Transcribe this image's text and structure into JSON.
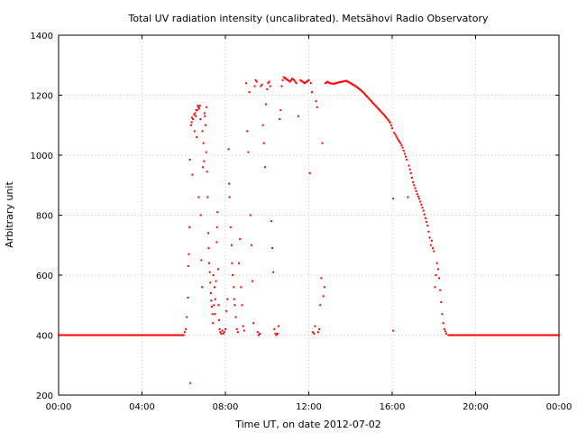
{
  "chart_data": {
    "type": "scatter",
    "title": "Total UV radiation intensity (uncalibrated). Metsähovi Radio Observatory",
    "xlabel": "Time UT, on date 2012-07-02",
    "ylabel": "Arbitrary unit",
    "x_unit": "hours UT",
    "xlim": [
      0,
      24
    ],
    "ylim": [
      200,
      1400
    ],
    "x_ticks": [
      0,
      4,
      8,
      12,
      16,
      20,
      24
    ],
    "x_tick_labels": [
      "00:00",
      "04:00",
      "08:00",
      "12:00",
      "16:00",
      "20:00",
      "00:00"
    ],
    "y_ticks": [
      200,
      400,
      600,
      800,
      1000,
      1200,
      1400
    ],
    "y_tick_labels": [
      "200",
      "400",
      "600",
      "800",
      "1000",
      "1200",
      "1400"
    ],
    "grid": true,
    "grid_style": "dotted",
    "point_color": "#ff0000",
    "series": [
      {
        "points": [
          [
            0.0,
            400
          ],
          [
            0.5,
            400
          ],
          [
            1.0,
            400
          ],
          [
            1.5,
            400
          ],
          [
            2.0,
            400
          ],
          [
            2.5,
            400
          ],
          [
            3.0,
            400
          ],
          [
            3.5,
            400
          ],
          [
            4.0,
            400
          ],
          [
            4.5,
            400
          ],
          [
            5.0,
            400
          ],
          [
            5.5,
            400
          ],
          [
            6.0,
            400
          ],
          [
            6.05,
            410
          ],
          [
            6.1,
            420
          ],
          [
            6.15,
            460
          ],
          [
            6.2,
            525
          ],
          [
            6.22,
            630
          ],
          [
            6.25,
            670
          ],
          [
            6.28,
            760
          ],
          [
            6.3,
            985
          ],
          [
            6.32,
            240
          ],
          [
            6.35,
            1100
          ],
          [
            6.38,
            1110
          ],
          [
            6.4,
            1125
          ],
          [
            6.42,
            935
          ],
          [
            6.45,
            1120
          ],
          [
            6.5,
            1135
          ],
          [
            6.52,
            1080
          ],
          [
            6.55,
            1140
          ],
          [
            6.58,
            1130
          ],
          [
            6.6,
            1150
          ],
          [
            6.62,
            1060
          ],
          [
            6.65,
            1150
          ],
          [
            6.68,
            1165
          ],
          [
            6.7,
            1160
          ],
          [
            6.72,
            860
          ],
          [
            6.75,
            1155
          ],
          [
            6.78,
            1165
          ],
          [
            6.8,
            1120
          ],
          [
            6.82,
            800
          ],
          [
            6.85,
            650
          ],
          [
            6.88,
            560
          ],
          [
            6.9,
            1080
          ],
          [
            6.92,
            960
          ],
          [
            6.95,
            1040
          ],
          [
            6.98,
            980
          ],
          [
            7.0,
            1140
          ],
          [
            7.02,
            1130
          ],
          [
            7.05,
            1100
          ],
          [
            7.08,
            1010
          ],
          [
            7.1,
            1160
          ],
          [
            7.12,
            945
          ],
          [
            7.15,
            860
          ],
          [
            7.18,
            740
          ],
          [
            7.2,
            690
          ],
          [
            7.22,
            640
          ],
          [
            7.25,
            610
          ],
          [
            7.28,
            575
          ],
          [
            7.3,
            540
          ],
          [
            7.32,
            515
          ],
          [
            7.35,
            495
          ],
          [
            7.38,
            470
          ],
          [
            7.4,
            440
          ],
          [
            7.42,
            600
          ],
          [
            7.45,
            500
          ],
          [
            7.48,
            560
          ],
          [
            7.5,
            470
          ],
          [
            7.52,
            520
          ],
          [
            7.55,
            580
          ],
          [
            7.58,
            710
          ],
          [
            7.6,
            760
          ],
          [
            7.62,
            810
          ],
          [
            7.65,
            620
          ],
          [
            7.68,
            500
          ],
          [
            7.7,
            450
          ],
          [
            7.72,
            420
          ],
          [
            7.75,
            410
          ],
          [
            7.8,
            405
          ],
          [
            7.85,
            415
          ],
          [
            7.9,
            405
          ],
          [
            7.95,
            410
          ],
          [
            8.0,
            420
          ],
          [
            8.05,
            480
          ],
          [
            8.1,
            520
          ],
          [
            8.15,
            1020
          ],
          [
            8.18,
            905
          ],
          [
            8.2,
            860
          ],
          [
            8.25,
            760
          ],
          [
            8.3,
            700
          ],
          [
            8.32,
            640
          ],
          [
            8.35,
            600
          ],
          [
            8.4,
            560
          ],
          [
            8.42,
            520
          ],
          [
            8.45,
            500
          ],
          [
            8.5,
            460
          ],
          [
            8.55,
            420
          ],
          [
            8.6,
            410
          ],
          [
            8.65,
            640
          ],
          [
            8.7,
            720
          ],
          [
            8.75,
            560
          ],
          [
            8.8,
            500
          ],
          [
            8.85,
            430
          ],
          [
            8.9,
            415
          ],
          [
            9.0,
            1240
          ],
          [
            9.05,
            1080
          ],
          [
            9.1,
            1010
          ],
          [
            9.15,
            1210
          ],
          [
            9.2,
            800
          ],
          [
            9.25,
            700
          ],
          [
            9.3,
            580
          ],
          [
            9.35,
            440
          ],
          [
            9.4,
            1230
          ],
          [
            9.45,
            1250
          ],
          [
            9.5,
            1245
          ],
          [
            9.55,
            410
          ],
          [
            9.6,
            400
          ],
          [
            9.65,
            405
          ],
          [
            9.7,
            1230
          ],
          [
            9.75,
            1235
          ],
          [
            9.8,
            1100
          ],
          [
            9.85,
            1040
          ],
          [
            9.9,
            960
          ],
          [
            9.95,
            1170
          ],
          [
            10.0,
            1220
          ],
          [
            10.05,
            1240
          ],
          [
            10.1,
            1245
          ],
          [
            10.15,
            1230
          ],
          [
            10.2,
            780
          ],
          [
            10.25,
            690
          ],
          [
            10.3,
            610
          ],
          [
            10.35,
            420
          ],
          [
            10.4,
            405
          ],
          [
            10.45,
            400
          ],
          [
            10.5,
            405
          ],
          [
            10.55,
            430
          ],
          [
            10.6,
            1120
          ],
          [
            10.65,
            1150
          ],
          [
            10.7,
            1230
          ],
          [
            10.75,
            1250
          ],
          [
            10.8,
            1260
          ],
          [
            10.9,
            1255
          ],
          [
            11.0,
            1250
          ],
          [
            11.1,
            1245
          ],
          [
            11.2,
            1255
          ],
          [
            11.3,
            1250
          ],
          [
            11.4,
            1240
          ],
          [
            11.5,
            1130
          ],
          [
            11.6,
            1250
          ],
          [
            11.7,
            1245
          ],
          [
            11.8,
            1240
          ],
          [
            11.9,
            1245
          ],
          [
            12.0,
            1250
          ],
          [
            12.05,
            940
          ],
          [
            12.1,
            1240
          ],
          [
            12.15,
            1210
          ],
          [
            12.2,
            410
          ],
          [
            12.25,
            405
          ],
          [
            12.3,
            430
          ],
          [
            12.35,
            1180
          ],
          [
            12.4,
            1160
          ],
          [
            12.45,
            410
          ],
          [
            12.5,
            420
          ],
          [
            12.55,
            500
          ],
          [
            12.6,
            590
          ],
          [
            12.65,
            1040
          ],
          [
            12.7,
            530
          ],
          [
            12.75,
            560
          ],
          [
            12.8,
            1240
          ],
          [
            12.9,
            1245
          ],
          [
            13.0,
            1240
          ],
          [
            13.2,
            1238
          ],
          [
            13.4,
            1242
          ],
          [
            13.6,
            1245
          ],
          [
            13.8,
            1248
          ],
          [
            14.0,
            1240
          ],
          [
            14.2,
            1232
          ],
          [
            14.4,
            1222
          ],
          [
            14.6,
            1210
          ],
          [
            14.8,
            1195
          ],
          [
            15.0,
            1180
          ],
          [
            15.2,
            1165
          ],
          [
            15.4,
            1150
          ],
          [
            15.6,
            1135
          ],
          [
            15.8,
            1118
          ],
          [
            15.9,
            1108
          ],
          [
            16.0,
            1090
          ],
          [
            16.05,
            855
          ],
          [
            16.1,
            1075
          ],
          [
            16.2,
            1062
          ],
          [
            16.3,
            1050
          ],
          [
            16.4,
            1040
          ],
          [
            16.5,
            1025
          ],
          [
            16.6,
            1005
          ],
          [
            16.7,
            985
          ],
          [
            16.75,
            860
          ],
          [
            16.8,
            965
          ],
          [
            16.9,
            940
          ],
          [
            17.0,
            910
          ],
          [
            17.1,
            890
          ],
          [
            17.2,
            870
          ],
          [
            17.3,
            855
          ],
          [
            17.4,
            835
          ],
          [
            17.5,
            815
          ],
          [
            17.6,
            790
          ],
          [
            17.7,
            765
          ],
          [
            17.8,
            725
          ],
          [
            17.85,
            700
          ],
          [
            17.9,
            715
          ],
          [
            17.95,
            690
          ],
          [
            18.0,
            680
          ],
          [
            18.05,
            560
          ],
          [
            18.1,
            600
          ],
          [
            18.15,
            640
          ],
          [
            18.2,
            620
          ],
          [
            18.25,
            590
          ],
          [
            18.3,
            550
          ],
          [
            18.35,
            510
          ],
          [
            18.4,
            470
          ],
          [
            18.45,
            440
          ],
          [
            18.5,
            420
          ],
          [
            18.6,
            405
          ],
          [
            16.05,
            415
          ],
          [
            18.7,
            400
          ],
          [
            19.0,
            400
          ],
          [
            19.5,
            400
          ],
          [
            20.0,
            400
          ],
          [
            20.5,
            400
          ],
          [
            21.0,
            400
          ],
          [
            21.5,
            400
          ],
          [
            22.0,
            400
          ],
          [
            22.5,
            400
          ],
          [
            23.0,
            400
          ],
          [
            23.5,
            400
          ],
          [
            24.0,
            400
          ]
        ]
      }
    ]
  }
}
